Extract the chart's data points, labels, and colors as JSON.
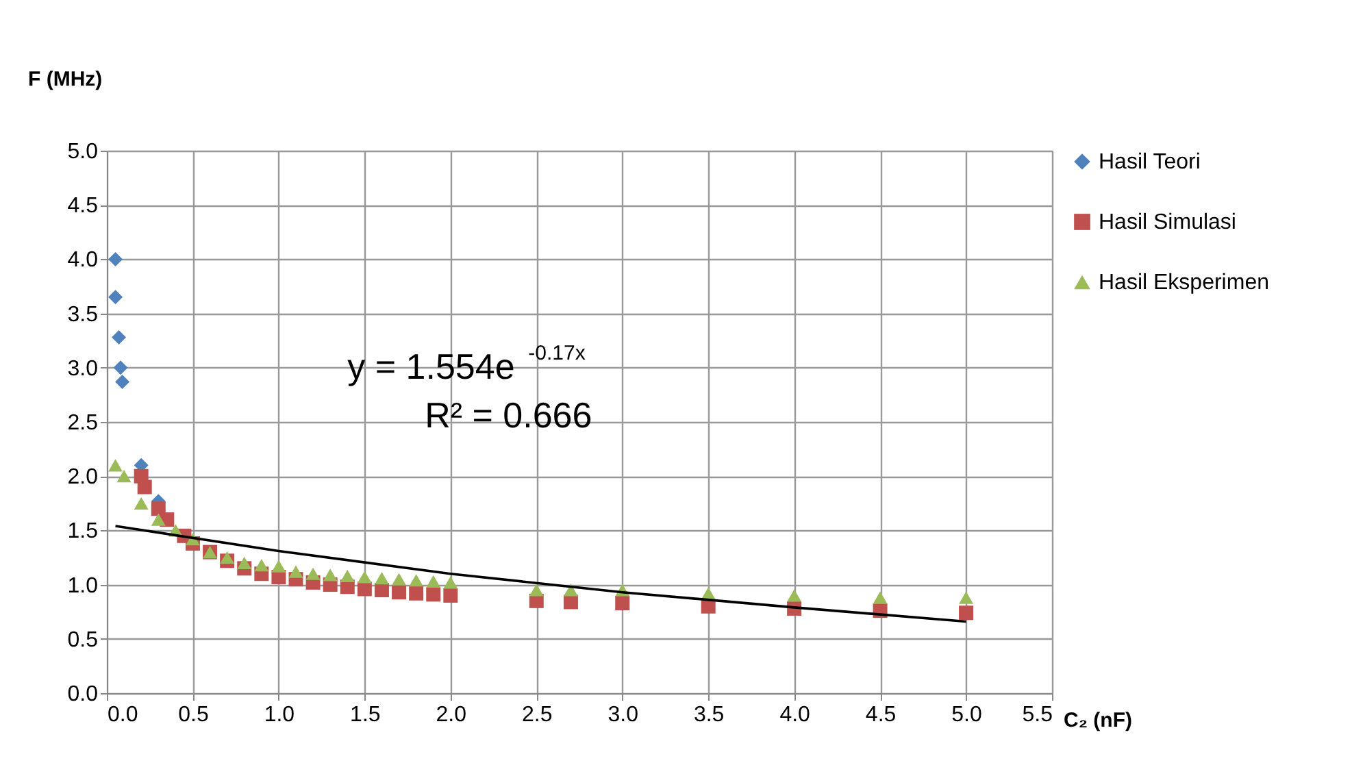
{
  "chart_data": {
    "type": "scatter",
    "xlabel": "C₂ (nF)",
    "ylabel": "F (MHz)",
    "xlim": [
      0,
      5.5
    ],
    "xticks": [
      {
        "value": 0,
        "label": "0.0"
      },
      0.5,
      {
        "value": 1,
        "label": "1.0"
      },
      1.5,
      {
        "value": 2,
        "label": "2.0"
      },
      2.5,
      {
        "value": 3,
        "label": "3.0"
      },
      3.5,
      {
        "value": 4,
        "label": "4.0"
      },
      4.5,
      {
        "value": 5,
        "label": "5.0"
      },
      5.5
    ],
    "ylim": [
      0,
      5
    ],
    "yticks": [
      {
        "value": 0,
        "label": "0.0"
      },
      0.5,
      {
        "value": 1,
        "label": "1.0"
      },
      1.5,
      {
        "value": 2,
        "label": "2.0"
      },
      2.5,
      {
        "value": 3,
        "label": "3.0"
      },
      3.5,
      {
        "value": 4,
        "label": "4.0"
      },
      4.5,
      {
        "value": 5,
        "label": "5.0"
      }
    ],
    "grid": true,
    "legend": "right",
    "annotations": [
      "y = 1.554e$^{-0.17x}$",
      "R² = 0.666"
    ],
    "series": [
      {
        "name": "Hasil Teori",
        "color": "#4f81bd",
        "marker": "diamond",
        "x": [
          0.05,
          0.05,
          0.07,
          0.08,
          0.09,
          0.2,
          0.3
        ],
        "values": [
          4.0,
          3.65,
          3.28,
          3.0,
          2.87,
          2.1,
          1.77
        ]
      },
      {
        "name": "Hasil Simulasi",
        "color": "#c0504d",
        "marker": "square",
        "x": [
          0.2,
          0.22,
          0.3,
          0.35,
          0.4,
          0.45,
          0.5,
          0.6,
          0.7,
          0.8,
          0.9,
          1.0,
          1.1,
          1.2,
          1.3,
          1.4,
          1.5,
          1.6,
          1.7,
          1.8,
          1.9,
          2.0,
          2.5,
          2.7,
          3.0,
          3.5,
          4.0,
          4.5,
          5.0
        ],
        "values": [
          2.0,
          1.9,
          1.7,
          1.6,
          null,
          1.45,
          1.38,
          1.3,
          1.22,
          1.15,
          1.1,
          1.07,
          1.05,
          1.02,
          1.0,
          0.98,
          0.96,
          0.95,
          0.93,
          0.92,
          0.91,
          0.9,
          0.85,
          0.84,
          0.83,
          0.8,
          0.78,
          0.76,
          0.74
        ]
      },
      {
        "name": "Hasil Eksperimen",
        "color": "#9bbb59",
        "marker": "triangle",
        "x": [
          0.05,
          0.1,
          0.2,
          0.3,
          0.4,
          0.5,
          0.6,
          0.7,
          0.8,
          0.9,
          1.0,
          1.1,
          1.2,
          1.3,
          1.4,
          1.5,
          1.6,
          1.7,
          1.8,
          1.9,
          2.0,
          2.5,
          2.7,
          3.0,
          3.5,
          4.0,
          4.5,
          5.0
        ],
        "values": [
          2.1,
          2.0,
          1.75,
          1.6,
          1.5,
          1.42,
          1.3,
          1.25,
          1.2,
          1.18,
          1.17,
          1.12,
          1.1,
          1.09,
          1.08,
          1.07,
          1.06,
          1.05,
          1.04,
          1.03,
          1.02,
          0.95,
          0.95,
          0.95,
          0.92,
          0.9,
          0.88,
          0.88
        ]
      },
      {
        "type": "line",
        "color": "#000000",
        "x": [
          0.05,
          1.0,
          2.0,
          3.0,
          4.0,
          5.0
        ],
        "values": [
          1.54,
          1.31,
          1.1,
          0.93,
          0.79,
          0.66
        ]
      }
    ]
  }
}
